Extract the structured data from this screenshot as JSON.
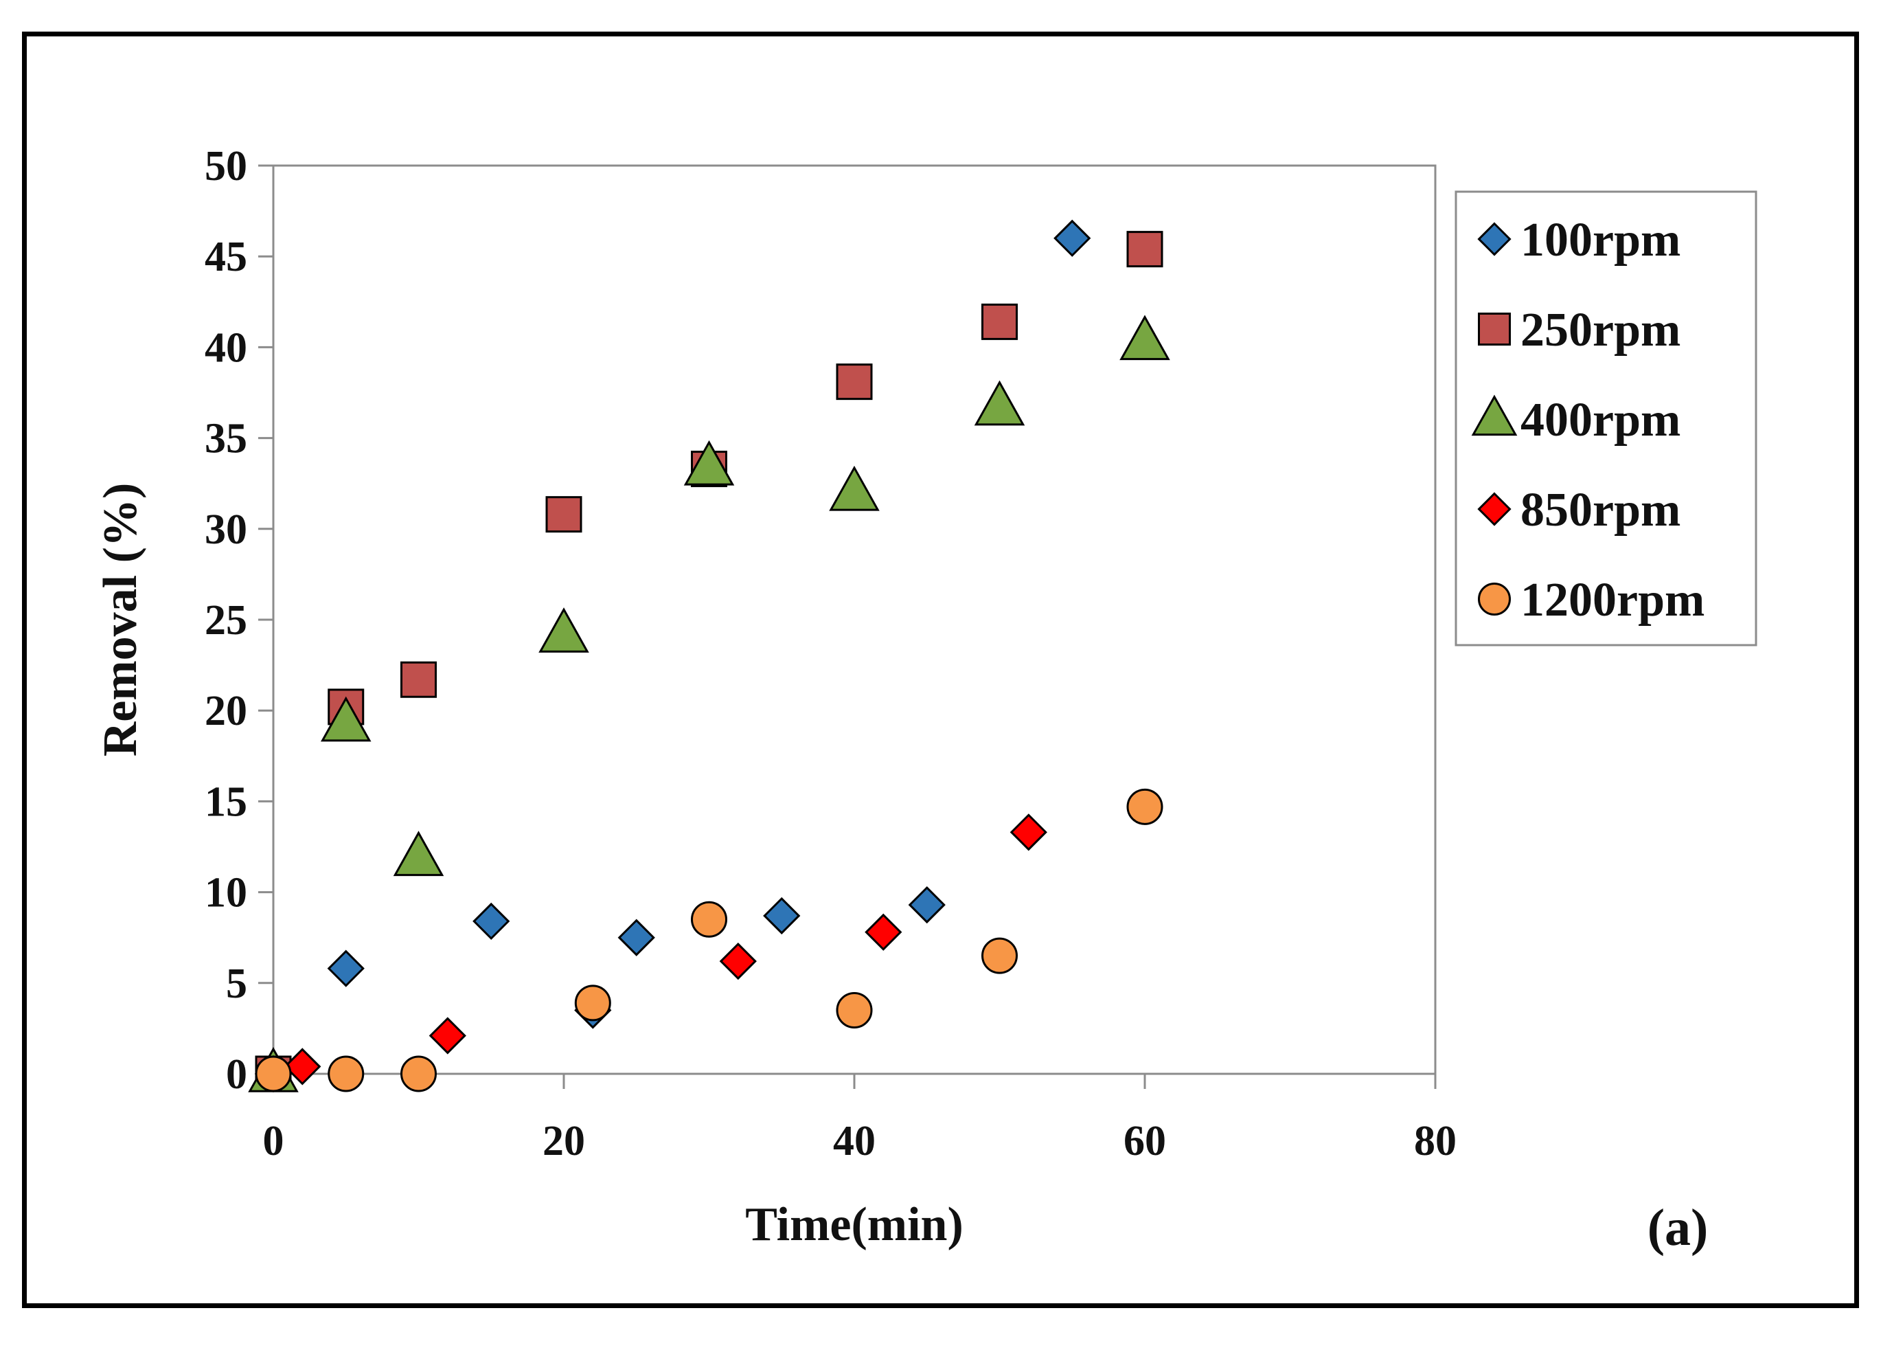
{
  "chart_data": {
    "type": "scatter",
    "title": "",
    "xlabel": "Time(min)",
    "ylabel": "Removal (%)",
    "xlim": [
      0,
      80
    ],
    "ylim": [
      0,
      50
    ],
    "xticks": [
      0,
      20,
      40,
      60,
      80
    ],
    "yticks": [
      0,
      5,
      10,
      15,
      20,
      25,
      30,
      35,
      40,
      45,
      50
    ],
    "grid": false,
    "legend_position": "right",
    "panel_label": "(a)",
    "series": [
      {
        "name": "100rpm",
        "marker": "diamond",
        "color": "#2e75b6",
        "points": [
          [
            0,
            0
          ],
          [
            5,
            5.8
          ],
          [
            15,
            8.4
          ],
          [
            22,
            3.5
          ],
          [
            25,
            7.5
          ],
          [
            35,
            8.7
          ],
          [
            45,
            9.3
          ],
          [
            55,
            46
          ]
        ]
      },
      {
        "name": "250rpm",
        "marker": "square",
        "color": "#c0504d",
        "points": [
          [
            0,
            0
          ],
          [
            5,
            20.2
          ],
          [
            10,
            21.7
          ],
          [
            20,
            30.8
          ],
          [
            30,
            33.3
          ],
          [
            40,
            38.1
          ],
          [
            50,
            41.4
          ],
          [
            60,
            45.4
          ]
        ]
      },
      {
        "name": "400rpm",
        "marker": "triangle",
        "color": "#77a641",
        "points": [
          [
            0,
            0
          ],
          [
            5,
            19.3
          ],
          [
            10,
            11.9
          ],
          [
            20,
            24.2
          ],
          [
            30,
            33.4
          ],
          [
            40,
            32
          ],
          [
            50,
            36.7
          ],
          [
            60,
            40.3
          ]
        ]
      },
      {
        "name": "850rpm",
        "marker": "diamond",
        "color": "#ff0000",
        "points": [
          [
            0,
            0
          ],
          [
            2,
            0.4
          ],
          [
            12,
            2.1
          ],
          [
            32,
            6.2
          ],
          [
            42,
            7.8
          ],
          [
            52,
            13.3
          ]
        ]
      },
      {
        "name": "1200rpm",
        "marker": "circle",
        "color": "#f79646",
        "points": [
          [
            0,
            0
          ],
          [
            5,
            0
          ],
          [
            10,
            0
          ],
          [
            22,
            3.9
          ],
          [
            30,
            8.5
          ],
          [
            40,
            3.5
          ],
          [
            50,
            6.5
          ],
          [
            60,
            14.7
          ]
        ]
      }
    ]
  }
}
